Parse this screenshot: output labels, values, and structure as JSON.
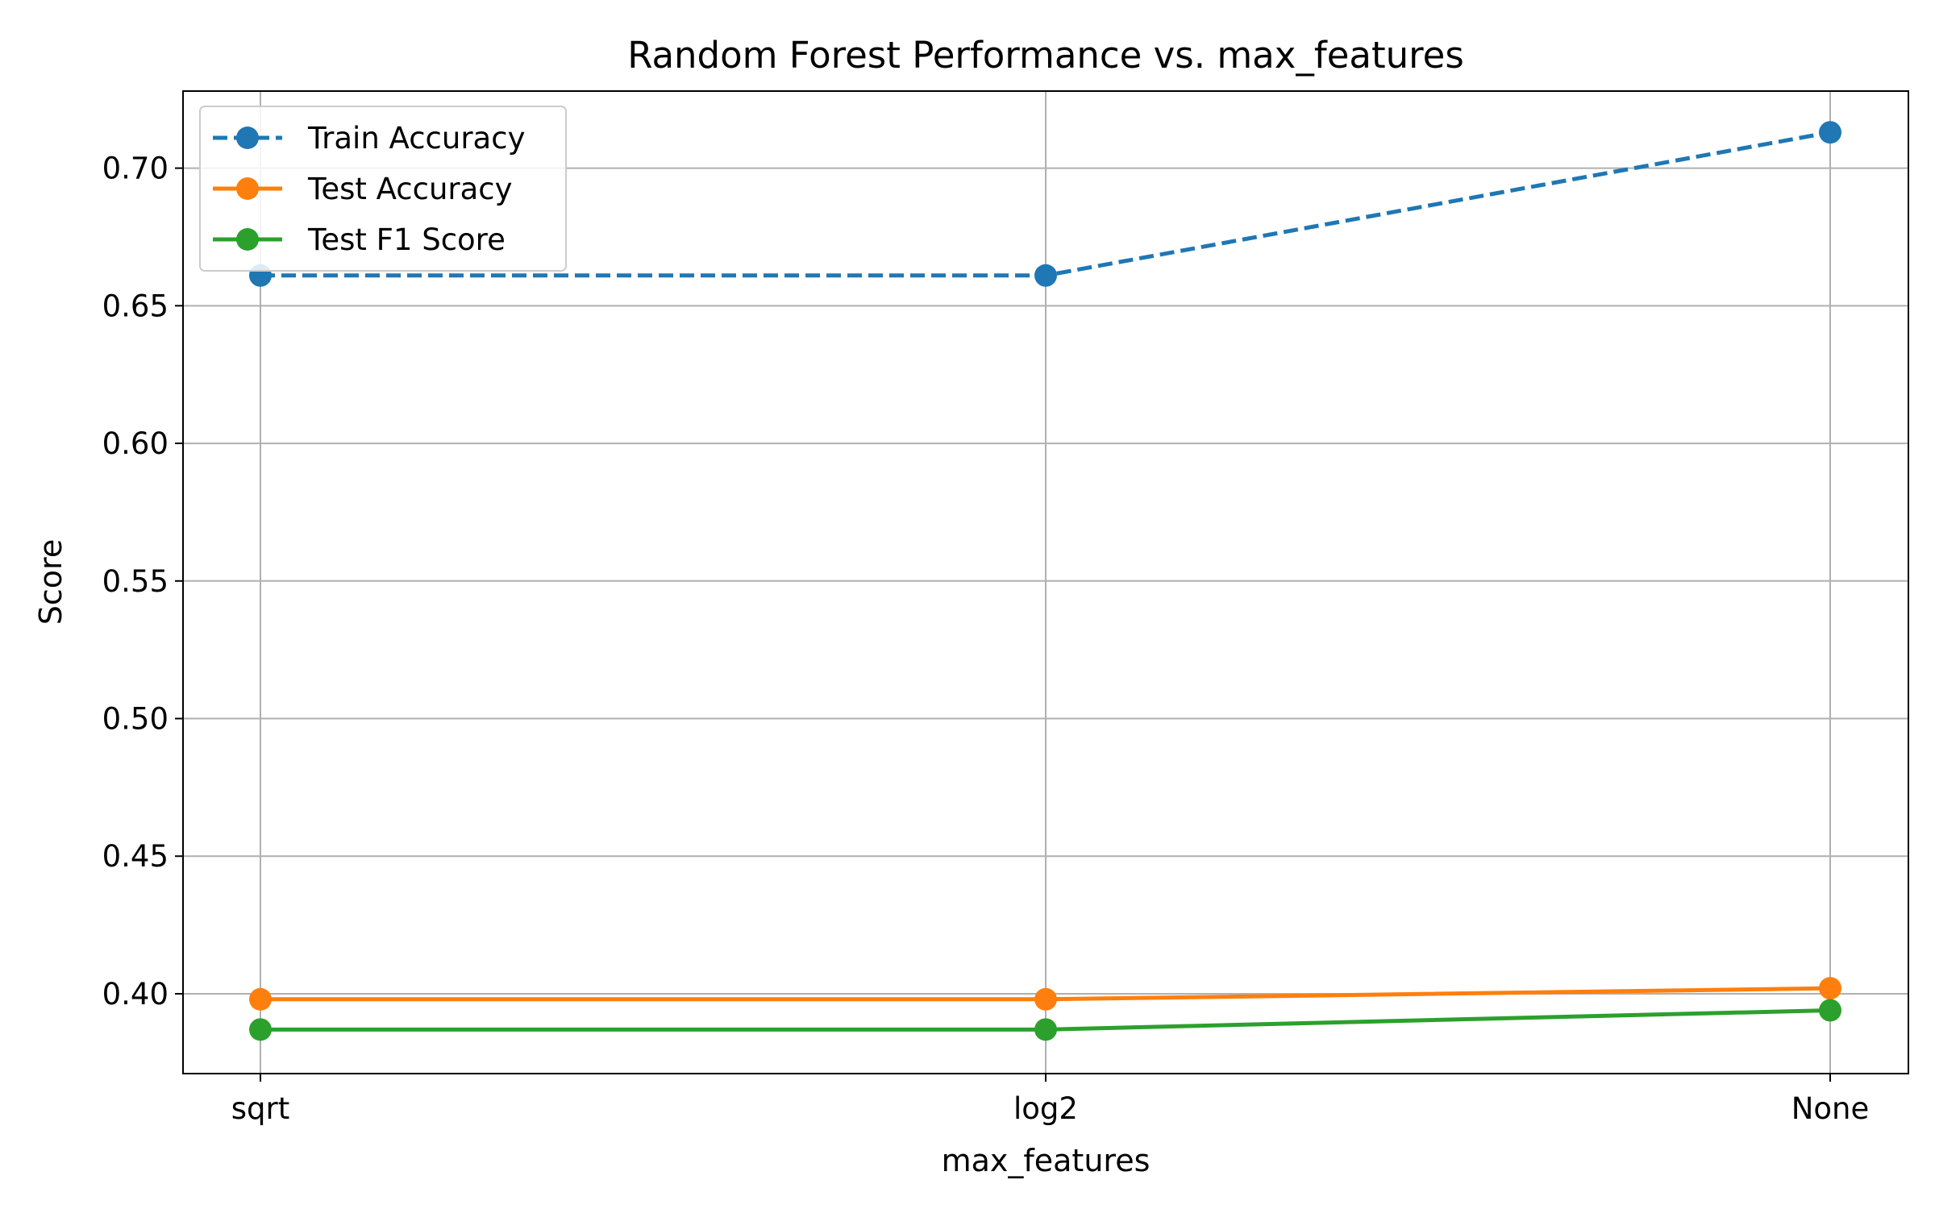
{
  "chart_data": {
    "type": "line",
    "title": "Random Forest Performance vs. max_features",
    "xlabel": "max_features",
    "ylabel": "Score",
    "categories": [
      "sqrt",
      "log2",
      "None"
    ],
    "ylim": [
      0.371,
      0.728
    ],
    "yticks": [
      0.4,
      0.45,
      0.5,
      0.55,
      0.6,
      0.65,
      0.7
    ],
    "ytick_labels": [
      "0.40",
      "0.45",
      "0.50",
      "0.55",
      "0.60",
      "0.65",
      "0.70"
    ],
    "grid": true,
    "legend_position": "upper left",
    "series": [
      {
        "name": "Train Accuracy",
        "values": [
          0.661,
          0.661,
          0.713
        ],
        "color": "#1f77b4",
        "dashed": true
      },
      {
        "name": "Test Accuracy",
        "values": [
          0.398,
          0.398,
          0.402
        ],
        "color": "#ff7f0e",
        "dashed": false
      },
      {
        "name": "Test F1 Score",
        "values": [
          0.387,
          0.387,
          0.394
        ],
        "color": "#2ca02c",
        "dashed": false
      }
    ]
  }
}
